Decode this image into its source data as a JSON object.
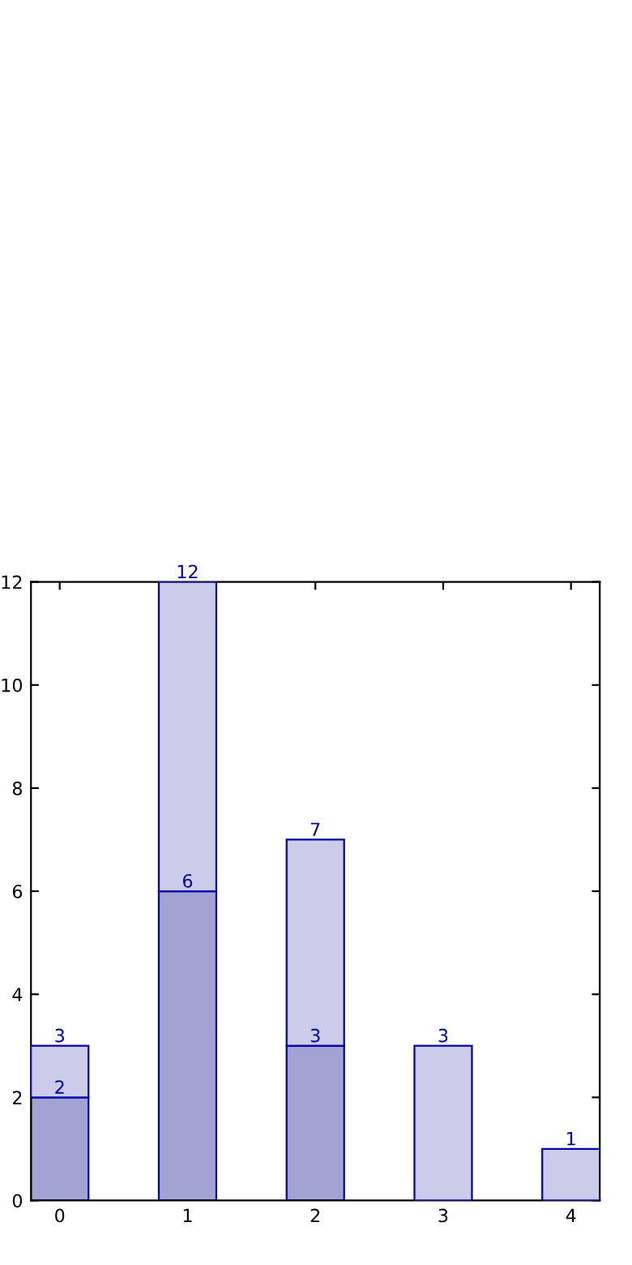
{
  "chart_data": {
    "type": "bar",
    "stacked": true,
    "categories": [
      "0",
      "1",
      "2",
      "3",
      "4"
    ],
    "series": [
      {
        "color": "#a3a3d3",
        "values": [
          2,
          6,
          3,
          null,
          null
        ],
        "value_labels": [
          "2",
          "6",
          "3",
          null,
          null
        ]
      },
      {
        "color": "#ccccea",
        "values": [
          1,
          6,
          4,
          3,
          1
        ]
      }
    ],
    "totals": [
      "3",
      "12",
      "7",
      "3",
      "1"
    ],
    "ylim": [
      0,
      12
    ],
    "yticks": [
      0,
      2,
      4,
      6,
      8,
      10,
      12
    ],
    "grid": false,
    "legend": false
  }
}
